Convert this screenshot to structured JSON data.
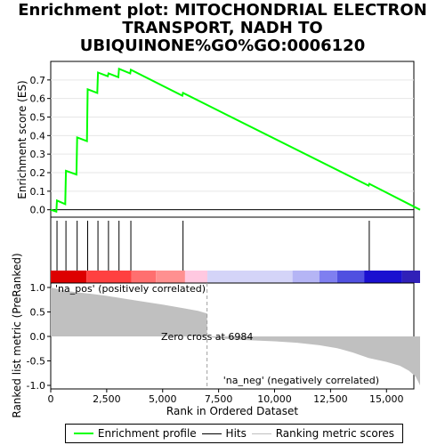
{
  "chart_data": {
    "type": "line",
    "title": "Enrichment plot: MITOCHONDRIAL ELECTRON TRANSPORT, NADH TO UBIQUINONE%GO%GO:0006120",
    "colors": {
      "enrichment_line": "#00ff00",
      "hits": "#000000",
      "metric_fill": "#c0c0c0",
      "pos_label": "#ff0000",
      "neg_label": "#0000ff"
    },
    "top_panel": {
      "ylabel": "Enrichment score (ES)",
      "ylim": [
        -0.04,
        0.8
      ],
      "yticks": [
        "0.0",
        "0.1",
        "0.2",
        "0.3",
        "0.4",
        "0.5",
        "0.6",
        "0.7"
      ],
      "ytick_values": [
        0.0,
        0.1,
        0.2,
        0.3,
        0.4,
        0.5,
        0.6,
        0.7
      ],
      "enrichment_profile": {
        "name": "Enrichment profile",
        "x": [
          0,
          250,
          280,
          650,
          680,
          1150,
          1180,
          1620,
          1650,
          2080,
          2110,
          2550,
          2580,
          3020,
          3050,
          3550,
          3580,
          5880,
          5910,
          14200,
          14230,
          16500
        ],
        "y": [
          0.0,
          -0.01,
          0.05,
          0.03,
          0.21,
          0.19,
          0.39,
          0.37,
          0.65,
          0.63,
          0.74,
          0.72,
          0.735,
          0.715,
          0.76,
          0.735,
          0.755,
          0.615,
          0.63,
          0.13,
          0.14,
          0.0
        ]
      },
      "hits": [
        280,
        680,
        1180,
        1650,
        2110,
        2580,
        3050,
        3580,
        5910,
        14230
      ]
    },
    "bottom_panel": {
      "ylabel": "Ranked list metric (PreRanked)",
      "xlabel": "Rank in Ordered Dataset",
      "ylim": [
        -1.0,
        1.0
      ],
      "yticks": [
        "-1.0",
        "-0.5",
        "0.0",
        "0.5",
        "1.0"
      ],
      "ytick_values": [
        -1.0,
        -0.5,
        0.0,
        0.5,
        1.0
      ],
      "xticks": [
        "0",
        "2,500",
        "5,000",
        "7,500",
        "10,000",
        "12,500",
        "15,000"
      ],
      "xtick_values": [
        0,
        2500,
        5000,
        7500,
        10000,
        12500,
        15000
      ],
      "xlim": [
        0,
        16500
      ],
      "zero_cross_label": "Zero cross at 6984",
      "zero_cross": 6984,
      "pos_label": "'na_pos' (positively correlated)",
      "neg_label": "'na_neg' (negatively correlated)",
      "metric_curve": {
        "x": [
          0,
          300,
          700,
          1200,
          1800,
          2500,
          3300,
          4000,
          5000,
          6000,
          6600,
          6900,
          6984,
          7500,
          8500,
          10000,
          11000,
          12000,
          12800,
          13500,
          14200,
          15000,
          15600,
          16000,
          16300,
          16500
        ],
        "y": [
          1.0,
          0.97,
          0.93,
          0.9,
          0.87,
          0.83,
          0.77,
          0.72,
          0.65,
          0.57,
          0.52,
          0.48,
          0.0,
          -0.04,
          -0.07,
          -0.1,
          -0.13,
          -0.18,
          -0.24,
          -0.33,
          -0.44,
          -0.52,
          -0.6,
          -0.7,
          -0.82,
          -1.0
        ]
      },
      "color_strip": [
        {
          "from": 0,
          "to": 1600,
          "color": "#dd0000"
        },
        {
          "from": 1600,
          "to": 3600,
          "color": "#ff4040"
        },
        {
          "from": 3600,
          "to": 4700,
          "color": "#ff6f6f"
        },
        {
          "from": 4700,
          "to": 6000,
          "color": "#ff9090"
        },
        {
          "from": 6000,
          "to": 7000,
          "color": "#ffc8e0"
        },
        {
          "from": 7000,
          "to": 10800,
          "color": "#d4d4f8"
        },
        {
          "from": 10800,
          "to": 12000,
          "color": "#b5b5f5"
        },
        {
          "from": 12000,
          "to": 12800,
          "color": "#7f7ff0"
        },
        {
          "from": 12800,
          "to": 14000,
          "color": "#5050e0"
        },
        {
          "from": 14000,
          "to": 15700,
          "color": "#1a10d0"
        },
        {
          "from": 15700,
          "to": 16500,
          "color": "#3020b8"
        }
      ]
    },
    "legend": {
      "position": "bottom",
      "entries": [
        {
          "label": "Enrichment profile",
          "color": "#00ff00"
        },
        {
          "label": "Hits",
          "color": "#000000"
        },
        {
          "label": "Ranking metric scores",
          "color": "#c0c0c0"
        }
      ]
    }
  }
}
